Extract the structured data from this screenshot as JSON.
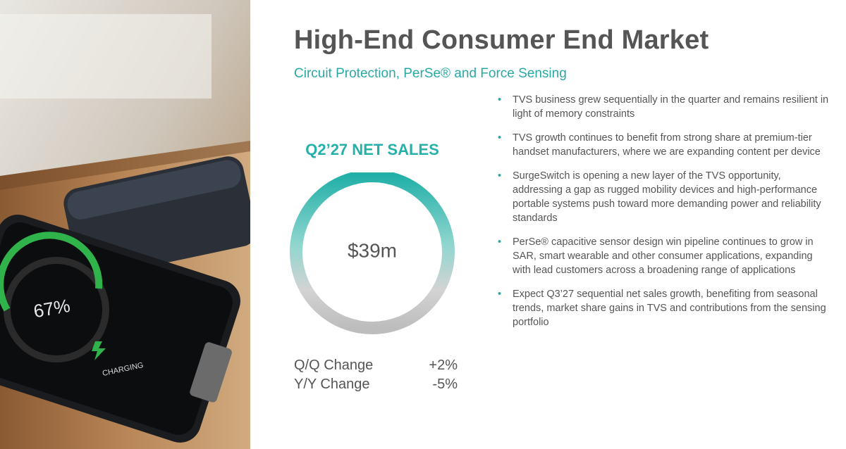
{
  "header": {
    "title": "High-End Consumer End Market",
    "subtitle": "Circuit Protection, PerSe® and Force Sensing"
  },
  "photo": {
    "battery": "67%",
    "status": "CHARGING"
  },
  "kpi": {
    "label": "Q2’27 NET SALES",
    "value": "$39m"
  },
  "changes": [
    {
      "label": "Q/Q Change",
      "value": "+2%"
    },
    {
      "label": "Y/Y Change",
      "value": "-5%"
    }
  ],
  "bullets": [
    "TVS business grew sequentially in the quarter and remains resilient in light of memory constraints",
    "TVS growth continues to benefit from strong share at premium-tier handset manufacturers, where we are expanding content per device",
    "SurgeSwitch is opening a new layer of the TVS opportunity, addressing a gap as rugged mobility devices and high-performance portable systems push toward more demanding power and reliability standards",
    "PerSe® capacitive sensor design win pipeline continues to grow in SAR, smart wearable and other consumer applications, expanding with lead customers across a broadening range of applications",
    "Expect Q3’27 sequential net sales growth, benefiting from seasonal trends, market share gains in TVS and contributions from the sensing portfolio"
  ]
}
